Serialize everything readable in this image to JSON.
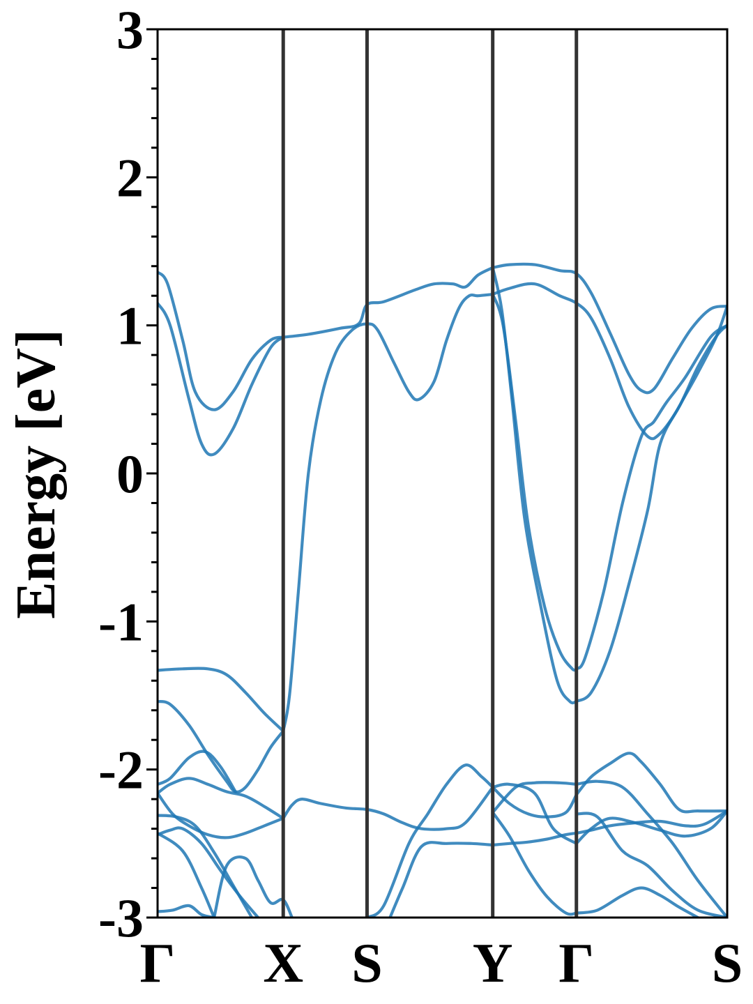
{
  "chart_data": {
    "type": "line",
    "title": "",
    "xlabel": "",
    "ylabel": "Energy [eV]",
    "ylim": [
      -3,
      3
    ],
    "yticks": [
      "3",
      "2",
      "1",
      "0",
      "-1",
      "-2",
      "-3"
    ],
    "ytick_values": [
      3,
      2,
      1,
      0,
      -1,
      -2,
      -3
    ],
    "yminor_step": 0.2,
    "grid": false,
    "legend": "none",
    "line_color": "#1f77b4",
    "kline_color": "#333333",
    "kpoints": [
      {
        "label": "Γ",
        "x": 0.0
      },
      {
        "label": "X",
        "x": 1.0
      },
      {
        "label": "S",
        "x": 1.667
      },
      {
        "label": "Y",
        "x": 2.667
      },
      {
        "label": "Γ",
        "x": 3.333
      },
      {
        "label": "S",
        "x": 4.533
      }
    ],
    "xlim": [
      0,
      4.533
    ],
    "series": [
      {
        "x": [
          0.0,
          0.08,
          0.2,
          0.3,
          0.45,
          0.6,
          0.75,
          0.9,
          1.0
        ],
        "values": [
          1.36,
          1.28,
          0.9,
          0.55,
          0.43,
          0.55,
          0.77,
          0.9,
          0.92
        ]
      },
      {
        "x": [
          0.0,
          0.1,
          0.25,
          0.35,
          0.45,
          0.6,
          0.75,
          0.9,
          1.0
        ],
        "values": [
          1.15,
          1.0,
          0.5,
          0.2,
          0.13,
          0.3,
          0.6,
          0.85,
          0.92
        ]
      },
      {
        "x": [
          1.0,
          1.2,
          1.45,
          1.6,
          1.667,
          1.8,
          2.05,
          2.2,
          2.35,
          2.45,
          2.55,
          2.667
        ],
        "values": [
          0.92,
          0.94,
          0.98,
          1.01,
          1.14,
          1.16,
          1.24,
          1.28,
          1.28,
          1.26,
          1.34,
          1.39
        ]
      },
      {
        "x": [
          1.0,
          1.05,
          1.12,
          1.2,
          1.3,
          1.42,
          1.55,
          1.667,
          1.75,
          1.88,
          2.0,
          2.08,
          2.2,
          2.3,
          2.4,
          2.48,
          2.55,
          2.667
        ],
        "values": [
          -1.74,
          -1.5,
          -0.8,
          0.0,
          0.5,
          0.82,
          0.97,
          1.01,
          0.97,
          0.75,
          0.55,
          0.5,
          0.62,
          0.9,
          1.12,
          1.2,
          1.2,
          1.21
        ]
      },
      {
        "x": [
          2.667,
          2.8,
          3.0,
          3.2,
          3.333,
          3.45,
          3.6,
          3.75,
          3.85,
          3.95,
          4.1,
          4.25,
          4.4,
          4.533
        ],
        "values": [
          1.39,
          1.41,
          1.41,
          1.37,
          1.35,
          1.22,
          0.95,
          0.67,
          0.56,
          0.57,
          0.78,
          0.98,
          1.11,
          1.13
        ]
      },
      {
        "x": [
          2.667,
          2.8,
          3.0,
          3.2,
          3.333,
          3.45,
          3.6,
          3.75,
          3.9,
          4.0,
          4.15,
          4.3,
          4.45,
          4.533
        ],
        "values": [
          1.21,
          1.25,
          1.28,
          1.2,
          1.15,
          1.05,
          0.78,
          0.45,
          0.25,
          0.27,
          0.45,
          0.72,
          0.93,
          1.0
        ]
      },
      {
        "x": [
          2.667,
          2.74,
          2.82,
          2.92,
          3.05,
          3.18,
          3.28,
          3.333
        ],
        "values": [
          1.39,
          1.1,
          0.5,
          -0.3,
          -0.9,
          -1.4,
          -1.54,
          -1.54
        ]
      },
      {
        "x": [
          2.667,
          2.75,
          2.85,
          2.95,
          3.08,
          3.2,
          3.3,
          3.333
        ],
        "values": [
          1.21,
          1.0,
          0.35,
          -0.35,
          -0.9,
          -1.2,
          -1.32,
          -1.32
        ]
      },
      {
        "x": [
          3.333,
          3.45,
          3.6,
          3.75,
          3.9,
          4.0,
          4.15,
          4.3,
          4.45,
          4.533
        ],
        "values": [
          -1.54,
          -1.48,
          -1.2,
          -0.75,
          -0.25,
          0.2,
          0.45,
          0.68,
          0.93,
          1.13
        ]
      },
      {
        "x": [
          3.333,
          3.4,
          3.55,
          3.7,
          3.85,
          3.95,
          4.05,
          4.2,
          4.4,
          4.533
        ],
        "values": [
          -1.32,
          -1.25,
          -0.8,
          -0.2,
          0.25,
          0.35,
          0.48,
          0.65,
          0.92,
          1.0
        ]
      },
      {
        "x": [
          0.0,
          0.2,
          0.4,
          0.55,
          0.7,
          0.85,
          1.0
        ],
        "values": [
          -1.33,
          -1.32,
          -1.32,
          -1.36,
          -1.48,
          -1.62,
          -1.74
        ]
      },
      {
        "x": [
          0.0,
          0.1,
          0.25,
          0.4,
          0.55,
          0.62,
          0.7,
          0.8,
          0.9,
          1.0
        ],
        "values": [
          -1.54,
          -1.56,
          -1.7,
          -1.9,
          -2.08,
          -2.15,
          -2.12,
          -2.0,
          -1.85,
          -1.74
        ]
      },
      {
        "x": [
          0.0,
          0.1,
          0.25,
          0.38,
          0.5,
          0.62
        ],
        "values": [
          -2.1,
          -2.06,
          -1.92,
          -1.88,
          -1.98,
          -2.15
        ]
      },
      {
        "x": [
          0.0,
          0.1,
          0.25,
          0.4,
          0.55,
          0.7,
          0.85,
          1.0
        ],
        "values": [
          -2.16,
          -2.1,
          -2.06,
          -2.1,
          -2.15,
          -2.18,
          -2.25,
          -2.33
        ]
      },
      {
        "x": [
          0.0,
          0.12,
          0.25,
          0.4,
          0.55,
          0.7,
          0.85,
          1.0
        ],
        "values": [
          -2.16,
          -2.3,
          -2.38,
          -2.44,
          -2.46,
          -2.43,
          -2.38,
          -2.33
        ]
      },
      {
        "x": [
          1.0,
          1.07,
          1.15,
          1.3,
          1.5,
          1.667,
          1.8,
          1.95,
          2.1,
          2.3,
          2.45,
          2.667
        ],
        "values": [
          -2.33,
          -2.24,
          -2.2,
          -2.23,
          -2.26,
          -2.27,
          -2.3,
          -2.36,
          -2.4,
          -2.4,
          -2.36,
          -2.12
        ]
      },
      {
        "x": [
          0.0,
          0.15,
          0.3,
          0.45,
          0.6,
          0.75
        ],
        "values": [
          -2.31,
          -2.32,
          -2.38,
          -2.56,
          -2.78,
          -3.0
        ]
      },
      {
        "x": [
          0.0,
          0.1,
          0.2,
          0.35,
          0.5,
          0.65,
          0.8
        ],
        "values": [
          -2.44,
          -2.41,
          -2.4,
          -2.5,
          -2.68,
          -2.85,
          -3.0
        ]
      },
      {
        "x": [
          0.0,
          0.2,
          0.35,
          0.45
        ],
        "values": [
          -2.43,
          -2.55,
          -2.8,
          -3.0
        ]
      },
      {
        "x": [
          0.0,
          0.12,
          0.25,
          0.35,
          0.45
        ],
        "values": [
          -2.96,
          -2.95,
          -2.92,
          -2.98,
          -3.0
        ]
      },
      {
        "x": [
          0.45,
          0.55,
          0.7,
          0.8,
          0.9,
          1.0,
          1.07
        ],
        "values": [
          -3.0,
          -2.65,
          -2.6,
          -2.75,
          -2.9,
          -2.88,
          -3.0
        ]
      },
      {
        "x": [
          1.667,
          1.8,
          2.0,
          2.15,
          2.3,
          2.45,
          2.58,
          2.667
        ],
        "values": [
          -3.0,
          -2.92,
          -2.5,
          -2.3,
          -2.1,
          -1.97,
          -2.05,
          -2.12
        ]
      },
      {
        "x": [
          1.85,
          1.95,
          2.1,
          2.3,
          2.5,
          2.667
        ],
        "values": [
          -3.0,
          -2.8,
          -2.52,
          -2.5,
          -2.5,
          -2.51
        ]
      },
      {
        "x": [
          2.667,
          2.8,
          2.95,
          3.1,
          3.25,
          3.333
        ],
        "values": [
          -2.12,
          -2.23,
          -2.3,
          -2.32,
          -2.29,
          -2.17
        ]
      },
      {
        "x": [
          2.667,
          2.8,
          2.95,
          3.1,
          3.25,
          3.333
        ],
        "values": [
          -2.51,
          -2.5,
          -2.49,
          -2.47,
          -2.44,
          -2.43
        ]
      },
      {
        "x": [
          2.667,
          2.85,
          3.0,
          3.2,
          3.333
        ],
        "values": [
          -2.29,
          -2.12,
          -2.09,
          -2.09,
          -2.1
        ]
      },
      {
        "x": [
          2.667,
          2.8,
          3.0,
          3.15,
          3.333
        ],
        "values": [
          -2.12,
          -2.1,
          -2.16,
          -2.4,
          -2.5
        ]
      },
      {
        "x": [
          2.667,
          2.8,
          2.95,
          3.1,
          3.25,
          3.333
        ],
        "values": [
          -2.29,
          -2.45,
          -2.68,
          -2.86,
          -2.97,
          -2.97
        ]
      },
      {
        "x": [
          3.333,
          3.45,
          3.6,
          3.75,
          3.85,
          4.0,
          4.15,
          4.3,
          4.533
        ],
        "values": [
          -2.17,
          -2.05,
          -1.96,
          -1.89,
          -1.95,
          -2.1,
          -2.27,
          -2.28,
          -2.28
        ]
      },
      {
        "x": [
          3.333,
          3.5,
          3.7,
          3.9,
          4.1,
          4.3,
          4.533
        ],
        "values": [
          -2.1,
          -2.08,
          -2.12,
          -2.3,
          -2.5,
          -2.75,
          -3.0
        ]
      },
      {
        "x": [
          3.333,
          3.45,
          3.6,
          3.8,
          4.0,
          4.2,
          4.35,
          4.533
        ],
        "values": [
          -2.43,
          -2.41,
          -2.38,
          -2.36,
          -2.35,
          -2.38,
          -2.37,
          -2.28
        ]
      },
      {
        "x": [
          3.333,
          3.45,
          3.6,
          3.8,
          4.0,
          4.2,
          4.4,
          4.533
        ],
        "values": [
          -2.5,
          -2.4,
          -2.33,
          -2.36,
          -2.41,
          -2.45,
          -2.4,
          -2.28
        ]
      },
      {
        "x": [
          3.333,
          3.5,
          3.7,
          3.9,
          4.1,
          4.3,
          4.533
        ],
        "values": [
          -2.3,
          -2.32,
          -2.55,
          -2.65,
          -2.82,
          -2.95,
          -3.0
        ]
      },
      {
        "x": [
          3.333,
          3.5,
          3.7,
          3.85,
          4.0,
          4.15,
          4.3
        ],
        "values": [
          -2.97,
          -2.95,
          -2.85,
          -2.8,
          -2.85,
          -2.93,
          -3.0
        ]
      }
    ]
  }
}
